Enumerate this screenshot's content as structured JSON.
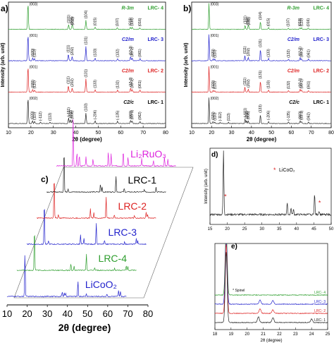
{
  "figure": {
    "panels": {
      "a": {
        "letter": "a)"
      },
      "b": {
        "letter": "b)"
      },
      "c": {
        "letter": "c)"
      },
      "d": {
        "letter": "d)"
      },
      "e": {
        "letter": "e)"
      }
    }
  },
  "chart_data": [
    {
      "id": "a",
      "type": "line",
      "xlabel": "2θ (degree)",
      "ylabel": "Intensity (arb. unit)",
      "xlim": [
        10,
        80
      ],
      "xticks": [
        10,
        20,
        30,
        40,
        50,
        60,
        70,
        80
      ],
      "series": [
        {
          "name": "LRC- 4",
          "space_group": "R-3m",
          "color": "#2e9e2e",
          "peaks": [
            [
              18.7,
              1.0,
              "(003)"
            ],
            [
              36.8,
              0.18,
              "(101)"
            ],
            [
              38.3,
              0.12,
              "(006)"
            ],
            [
              38.6,
              0.1,
              "(012)"
            ],
            [
              44.5,
              0.35,
              "(104)"
            ],
            [
              48.6,
              0.08,
              "(015)"
            ],
            [
              58.5,
              0.06,
              "(107)"
            ],
            [
              64.3,
              0.08,
              "(018)"
            ],
            [
              65.1,
              0.08,
              "(110)"
            ],
            [
              68.5,
              0.06,
              "(016)"
            ]
          ]
        },
        {
          "name": "LRC- 3",
          "space_group": "C2/m",
          "color": "#2222cc",
          "peaks": [
            [
              18.7,
              1.0,
              "(001)"
            ],
            [
              20.8,
              0.1,
              "(020)"
            ],
            [
              21.6,
              0.08,
              "(110)"
            ],
            [
              36.7,
              0.25,
              "(111)"
            ],
            [
              38.4,
              0.15,
              "(202)"
            ],
            [
              44.5,
              0.55,
              "(131)"
            ],
            [
              48.6,
              0.1,
              "(133)"
            ],
            [
              58.6,
              0.08,
              "(132)"
            ],
            [
              64.4,
              0.15,
              "(13-3)"
            ],
            [
              65.1,
              0.1,
              "(33-1)"
            ],
            [
              68.6,
              0.08,
              "(061)"
            ]
          ]
        },
        {
          "name": "LRC- 2",
          "space_group": "C2/m",
          "color": "#dd2222",
          "peaks": [
            [
              18.7,
              1.0,
              "(001)"
            ],
            [
              20.8,
              0.1,
              "(020)"
            ],
            [
              21.6,
              0.08,
              "(110)"
            ],
            [
              36.7,
              0.25,
              "(111)"
            ],
            [
              38.4,
              0.15,
              "(202)"
            ],
            [
              44.5,
              0.5,
              "(131)"
            ],
            [
              48.6,
              0.1,
              "(133)"
            ],
            [
              58.6,
              0.08,
              "(132)"
            ],
            [
              64.4,
              0.15,
              "(13-3)"
            ],
            [
              65.1,
              0.1,
              "(33-1)"
            ],
            [
              68.6,
              0.08,
              "(061)"
            ]
          ]
        },
        {
          "name": "LRC- 1",
          "space_group": "C2/c",
          "color": "#222222",
          "peaks": [
            [
              18.7,
              1.0,
              "(002)"
            ],
            [
              20.7,
              0.1,
              "(020)"
            ],
            [
              21.6,
              0.08,
              "(110)"
            ],
            [
              24.3,
              0.05,
              "(-112)"
            ],
            [
              28.5,
              0.05,
              "(113)"
            ],
            [
              36.8,
              0.2,
              "(-131)"
            ],
            [
              37.6,
              0.15,
              "(202)"
            ],
            [
              38.4,
              0.12,
              "(006)"
            ],
            [
              44.5,
              0.4,
              "(133)"
            ],
            [
              48.6,
              0.1,
              "(-206)"
            ],
            [
              58.6,
              0.08,
              "(-135)"
            ],
            [
              64.4,
              0.12,
              "(060)"
            ],
            [
              65.1,
              0.1,
              "(33-1)"
            ],
            [
              68.6,
              0.08,
              "(062)"
            ]
          ]
        }
      ]
    },
    {
      "id": "b",
      "type": "line",
      "xlabel": "2θ (degree)",
      "ylabel": "Intensity (arb. unit)",
      "xlim": [
        10,
        80
      ],
      "xticks": [
        10,
        20,
        30,
        40,
        50,
        60,
        70,
        80
      ],
      "series": [
        {
          "name": "LRC- 4",
          "space_group": "R-3m",
          "color": "#2e9e2e",
          "peaks": [
            [
              18.7,
              1.0,
              "(003)"
            ],
            [
              36.8,
              0.15,
              "(101)"
            ],
            [
              38.3,
              0.1,
              "(006)"
            ],
            [
              38.6,
              0.1,
              "(012)"
            ],
            [
              44.5,
              0.3,
              "(104)"
            ],
            [
              48.6,
              0.06,
              "(015)"
            ],
            [
              58.5,
              0.05,
              "(107)"
            ],
            [
              64.3,
              0.06,
              "(018)"
            ],
            [
              65.1,
              0.06,
              "(110)"
            ],
            [
              68.5,
              0.05,
              "(016)"
            ]
          ]
        },
        {
          "name": "LRC- 3",
          "space_group": "C2/m",
          "color": "#2222cc",
          "peaks": [
            [
              18.7,
              1.0,
              "(001)"
            ],
            [
              20.8,
              0.08,
              "(020)"
            ],
            [
              21.6,
              0.06,
              "(110)"
            ],
            [
              36.7,
              0.2,
              "(111)"
            ],
            [
              38.4,
              0.12,
              "(202)"
            ],
            [
              44.5,
              0.45,
              "(131)"
            ],
            [
              48.6,
              0.08,
              "(133)"
            ],
            [
              58.6,
              0.06,
              "(132)"
            ],
            [
              64.4,
              0.12,
              "(13-3)"
            ],
            [
              65.1,
              0.08,
              "(33-1)"
            ],
            [
              68.6,
              0.06,
              "(061)"
            ]
          ]
        },
        {
          "name": "LRC- 2",
          "space_group": "C2/m",
          "color": "#dd2222",
          "peaks": [
            [
              18.7,
              1.0,
              "(001)"
            ],
            [
              20.8,
              0.08,
              "(020)"
            ],
            [
              21.6,
              0.06,
              "(110)"
            ],
            [
              36.7,
              0.2,
              "(111)"
            ],
            [
              38.4,
              0.12,
              "(202)"
            ],
            [
              44.5,
              0.45,
              "(131)"
            ],
            [
              48.6,
              0.08,
              "(133)"
            ],
            [
              58.6,
              0.06,
              "(132)"
            ],
            [
              64.4,
              0.12,
              "(13-3)"
            ],
            [
              65.1,
              0.08,
              "(33-1)"
            ],
            [
              68.6,
              0.06,
              "(061)"
            ]
          ]
        },
        {
          "name": "LRC- 1",
          "space_group": "C2/c",
          "color": "#222222",
          "peaks": [
            [
              18.7,
              1.0,
              "(002)"
            ],
            [
              20.7,
              0.08,
              "(020)"
            ],
            [
              21.6,
              0.06,
              "(110)"
            ],
            [
              24.3,
              0.04,
              "(-112)"
            ],
            [
              28.5,
              0.04,
              "(113)"
            ],
            [
              36.8,
              0.18,
              "(-131)"
            ],
            [
              37.6,
              0.12,
              "(202)"
            ],
            [
              38.4,
              0.1,
              "(006)"
            ],
            [
              44.5,
              0.35,
              "(133)"
            ],
            [
              48.6,
              0.08,
              "(-206)"
            ],
            [
              58.6,
              0.06,
              "(-135)"
            ],
            [
              64.4,
              0.1,
              "(060)"
            ],
            [
              65.1,
              0.08,
              "(33-1)"
            ],
            [
              68.6,
              0.06,
              "(062)"
            ]
          ]
        }
      ]
    },
    {
      "id": "c",
      "type": "line",
      "xlabel": "2θ (degree)",
      "xlim": [
        10,
        80
      ],
      "xticks": [
        10,
        20,
        30,
        40,
        50,
        60,
        70,
        80
      ],
      "series": [
        {
          "name": "LiCoO₂",
          "color": "#2222cc",
          "peaks": [
            [
              18.9,
              1.0
            ],
            [
              37.4,
              0.1
            ],
            [
              38.4,
              0.08
            ],
            [
              39.1,
              0.06
            ],
            [
              45.2,
              0.35
            ],
            [
              49.4,
              0.06
            ],
            [
              59.6,
              0.06
            ],
            [
              65.4,
              0.12
            ],
            [
              66.3,
              0.1
            ]
          ]
        },
        {
          "name": "LRC-4",
          "color": "#2e9e2e",
          "peaks": [
            [
              18.7,
              1.0
            ],
            [
              36.8,
              0.15
            ],
            [
              38.4,
              0.1
            ],
            [
              44.5,
              0.35
            ],
            [
              48.6,
              0.06
            ],
            [
              58.5,
              0.05
            ],
            [
              64.3,
              0.1
            ],
            [
              65.1,
              0.08
            ]
          ]
        },
        {
          "name": "LRC-3",
          "color": "#2222cc",
          "peaks": [
            [
              18.7,
              1.0
            ],
            [
              20.8,
              0.08
            ],
            [
              36.7,
              0.2
            ],
            [
              38.4,
              0.12
            ],
            [
              44.5,
              0.45
            ],
            [
              48.6,
              0.08
            ],
            [
              58.6,
              0.06
            ],
            [
              64.4,
              0.12
            ],
            [
              65.1,
              0.08
            ]
          ]
        },
        {
          "name": "LRC-2",
          "color": "#dd2222",
          "peaks": [
            [
              18.7,
              1.0
            ],
            [
              20.8,
              0.08
            ],
            [
              36.7,
              0.2
            ],
            [
              38.4,
              0.12
            ],
            [
              44.5,
              0.45
            ],
            [
              48.6,
              0.08
            ],
            [
              58.6,
              0.06
            ],
            [
              64.4,
              0.12
            ],
            [
              65.1,
              0.08
            ]
          ]
        },
        {
          "name": "LRC-1",
          "color": "#222222",
          "peaks": [
            [
              18.7,
              1.0
            ],
            [
              20.7,
              0.08
            ],
            [
              36.8,
              0.18
            ],
            [
              37.6,
              0.12
            ],
            [
              44.5,
              0.35
            ],
            [
              48.6,
              0.08
            ],
            [
              58.6,
              0.06
            ],
            [
              64.4,
              0.1
            ]
          ]
        },
        {
          "name": "Li₂RuO₃",
          "color": "#dd22dd",
          "peaks": [
            [
              18.3,
              1.0
            ],
            [
              20.2,
              0.3
            ],
            [
              21.4,
              0.25
            ],
            [
              24.7,
              0.2
            ],
            [
              28.2,
              0.15
            ],
            [
              35.8,
              0.3
            ],
            [
              37.2,
              0.25
            ],
            [
              43.2,
              0.35
            ],
            [
              45.6,
              0.2
            ],
            [
              52.4,
              0.15
            ],
            [
              58.2,
              0.12
            ],
            [
              63.7,
              0.2
            ],
            [
              65.4,
              0.15
            ]
          ]
        }
      ]
    },
    {
      "id": "d",
      "type": "line",
      "ylabel": "Intensity (arb. unit)",
      "xlim": [
        15,
        50
      ],
      "xticks": [
        15,
        20,
        25,
        30,
        35,
        40,
        45,
        50
      ],
      "legend": [
        {
          "label": "LiCoO₂",
          "marker": "*",
          "color": "#dd2222"
        }
      ],
      "series": [
        {
          "name": "",
          "color": "#222222",
          "peaks": [
            [
              18.9,
              1.0
            ],
            [
              37.3,
              0.18
            ],
            [
              38.4,
              0.1
            ],
            [
              39.1,
              0.08
            ],
            [
              45.2,
              0.32
            ],
            [
              46.5,
              0.06
            ]
          ]
        }
      ]
    },
    {
      "id": "e",
      "type": "line",
      "xlabel": "2θ (degree)",
      "xlim": [
        18,
        25
      ],
      "xticks": [
        18,
        19,
        20,
        21,
        22,
        23,
        24,
        25
      ],
      "annotations": [
        "* Spinel"
      ],
      "series": [
        {
          "name": "LRC- 4",
          "color": "#2e9e2e",
          "peaks": [
            [
              18.7,
              1.0
            ]
          ]
        },
        {
          "name": "LRC- 3",
          "color": "#2222cc",
          "peaks": [
            [
              18.7,
              1.0
            ],
            [
              20.8,
              0.06
            ],
            [
              21.6,
              0.05
            ]
          ]
        },
        {
          "name": "LRC- 2",
          "color": "#dd2222",
          "peaks": [
            [
              18.7,
              1.0
            ],
            [
              20.8,
              0.06
            ],
            [
              21.6,
              0.05
            ]
          ]
        },
        {
          "name": "LRC- 1",
          "color": "#222222",
          "peaks": [
            [
              18.7,
              1.0
            ],
            [
              20.7,
              0.08
            ],
            [
              21.6,
              0.07
            ],
            [
              24.0,
              0.05
            ]
          ]
        }
      ]
    }
  ]
}
